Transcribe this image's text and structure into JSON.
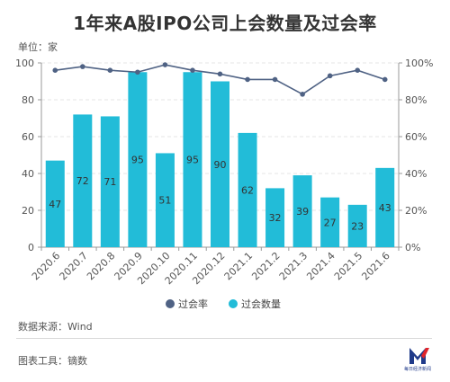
{
  "header": {
    "title": "1年来A股IPO公司上会数量及过会率",
    "unit": "单位：家"
  },
  "footer": {
    "source": "数据来源：Wind",
    "tool": "图表工具：镝数",
    "logo_text": "每日经济新闻"
  },
  "colors": {
    "bar": "#22bcd8",
    "line": "#4f6284",
    "grid": "#e6e6e6"
  },
  "chart_data": {
    "type": "bar",
    "categories": [
      "2020.6",
      "2020.7",
      "2020.8",
      "2020.9",
      "2020.10",
      "2020.11",
      "2020.12",
      "2021.1",
      "2021.2",
      "2021.3",
      "2021.4",
      "2021.5",
      "2021.6"
    ],
    "series": [
      {
        "name": "过会数量",
        "type": "bar",
        "axis": "left",
        "values": [
          47,
          72,
          71,
          95,
          51,
          95,
          90,
          62,
          32,
          39,
          27,
          23,
          43
        ]
      },
      {
        "name": "过会率",
        "type": "line",
        "axis": "right",
        "values": [
          96,
          98,
          96,
          95,
          99,
          96,
          94,
          91,
          91,
          83,
          93,
          96,
          91
        ]
      }
    ],
    "ylim": [
      0,
      100
    ],
    "yticks": [
      0,
      20,
      40,
      60,
      80,
      100
    ],
    "y2lim": [
      0,
      100
    ],
    "y2ticks": [
      "0%",
      "20%",
      "40%",
      "60%",
      "80%",
      "100%"
    ],
    "legend": [
      "过会率",
      "过会数量"
    ],
    "legend_position": "bottom",
    "grid": true
  }
}
